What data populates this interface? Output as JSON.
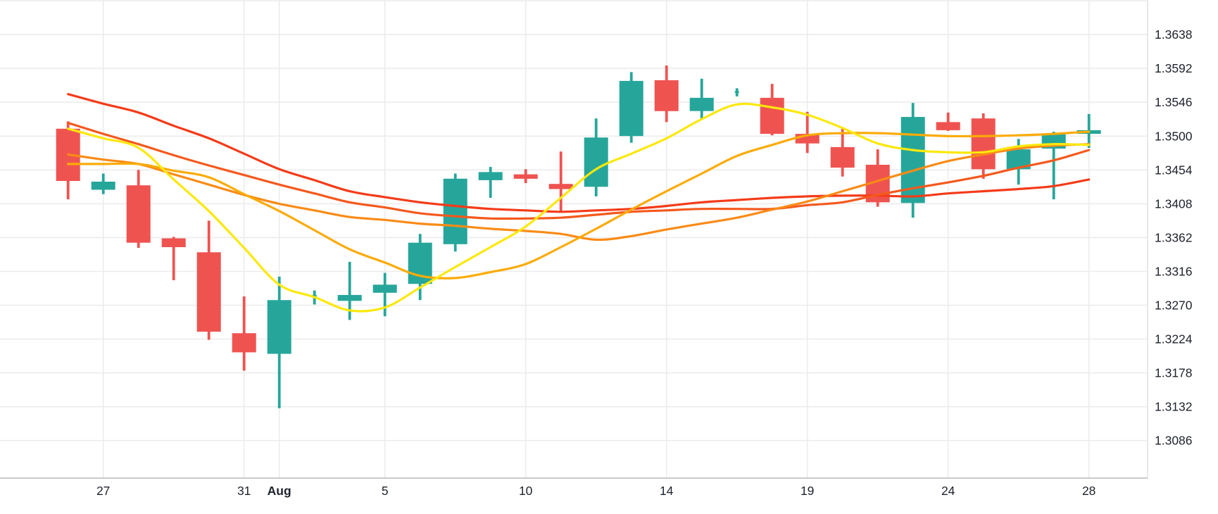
{
  "chart_data": {
    "type": "candlestick",
    "instrument_hint": "",
    "grid": true,
    "legend_position": "none",
    "y_axis": {
      "side": "right",
      "tick_labels": [
        "1.3638",
        "1.3592",
        "1.3546",
        "1.3500",
        "1.3454",
        "1.3408",
        "1.3362",
        "1.3316",
        "1.3270",
        "1.3224",
        "1.3178",
        "1.3132",
        "1.3086"
      ],
      "tick_prices": [
        1.3638,
        1.3592,
        1.3546,
        1.35,
        1.3454,
        1.3408,
        1.3362,
        1.3316,
        1.327,
        1.3224,
        1.3178,
        1.3132,
        1.3086
      ],
      "ylim": [
        1.3035,
        1.3685
      ]
    },
    "x_axis": {
      "side": "bottom",
      "labels": [
        {
          "candle_index": 1,
          "text": "27",
          "bold": false
        },
        {
          "candle_index": 5,
          "text": "31",
          "bold": false
        },
        {
          "candle_index": 6,
          "text": "Aug",
          "bold": true
        },
        {
          "candle_index": 9,
          "text": "5",
          "bold": false
        },
        {
          "candle_index": 13,
          "text": "10",
          "bold": false
        },
        {
          "candle_index": 17,
          "text": "14",
          "bold": false
        },
        {
          "candle_index": 21,
          "text": "19",
          "bold": false
        },
        {
          "candle_index": 25,
          "text": "24",
          "bold": false
        },
        {
          "candle_index": 29,
          "text": "28",
          "bold": false
        }
      ]
    },
    "candles": [
      {
        "o": 1.351,
        "h": 1.352,
        "l": 1.3414,
        "c": 1.3439
      },
      {
        "o": 1.3427,
        "h": 1.3449,
        "l": 1.3421,
        "c": 1.3438
      },
      {
        "o": 1.3433,
        "h": 1.3454,
        "l": 1.3348,
        "c": 1.3355
      },
      {
        "o": 1.3361,
        "h": 1.3363,
        "l": 1.3304,
        "c": 1.3349
      },
      {
        "o": 1.3342,
        "h": 1.3385,
        "l": 1.3223,
        "c": 1.3234
      },
      {
        "o": 1.3232,
        "h": 1.3282,
        "l": 1.3181,
        "c": 1.3206
      },
      {
        "o": 1.3204,
        "h": 1.3309,
        "l": 1.313,
        "c": 1.3277
      },
      {
        "o": 1.328,
        "h": 1.329,
        "l": 1.3271,
        "c": 1.3284,
        "thin": true
      },
      {
        "o": 1.3276,
        "h": 1.3329,
        "l": 1.325,
        "c": 1.3284
      },
      {
        "o": 1.3287,
        "h": 1.3314,
        "l": 1.3255,
        "c": 1.3298
      },
      {
        "o": 1.3299,
        "h": 1.3367,
        "l": 1.3277,
        "c": 1.3355
      },
      {
        "o": 1.3353,
        "h": 1.3449,
        "l": 1.3343,
        "c": 1.3442
      },
      {
        "o": 1.344,
        "h": 1.3458,
        "l": 1.3416,
        "c": 1.3451
      },
      {
        "o": 1.3448,
        "h": 1.3455,
        "l": 1.3436,
        "c": 1.3442
      },
      {
        "o": 1.3435,
        "h": 1.3479,
        "l": 1.3398,
        "c": 1.3428
      },
      {
        "o": 1.3431,
        "h": 1.3524,
        "l": 1.3418,
        "c": 1.3498
      },
      {
        "o": 1.35,
        "h": 1.3587,
        "l": 1.3491,
        "c": 1.3575
      },
      {
        "o": 1.3576,
        "h": 1.3596,
        "l": 1.3519,
        "c": 1.3534
      },
      {
        "o": 1.3534,
        "h": 1.3578,
        "l": 1.3524,
        "c": 1.3552
      },
      {
        "o": 1.3559,
        "h": 1.3565,
        "l": 1.3554,
        "c": 1.3561,
        "thin": true
      },
      {
        "o": 1.3552,
        "h": 1.3571,
        "l": 1.3501,
        "c": 1.3503
      },
      {
        "o": 1.3503,
        "h": 1.3533,
        "l": 1.3477,
        "c": 1.349
      },
      {
        "o": 1.3485,
        "h": 1.351,
        "l": 1.3445,
        "c": 1.3457
      },
      {
        "o": 1.3461,
        "h": 1.3482,
        "l": 1.3404,
        "c": 1.341
      },
      {
        "o": 1.3409,
        "h": 1.3545,
        "l": 1.3389,
        "c": 1.3526
      },
      {
        "o": 1.3519,
        "h": 1.3532,
        "l": 1.3507,
        "c": 1.3508
      },
      {
        "o": 1.3524,
        "h": 1.3531,
        "l": 1.3442,
        "c": 1.3455
      },
      {
        "o": 1.3455,
        "h": 1.3496,
        "l": 1.3434,
        "c": 1.3482
      },
      {
        "o": 1.3483,
        "h": 1.3506,
        "l": 1.3414,
        "c": 1.3503
      },
      {
        "o": 1.3503,
        "h": 1.353,
        "l": 1.3484,
        "c": 1.3508
      }
    ],
    "ma_lines": [
      {
        "name": "ma-slowest-red",
        "color": "#f43b19",
        "values": [
          1.3557,
          1.3544,
          1.3532,
          1.3514,
          1.3497,
          1.3476,
          1.3455,
          1.344,
          1.3425,
          1.3417,
          1.341,
          1.3405,
          1.3401,
          1.3399,
          1.3397,
          1.3399,
          1.3401,
          1.3405,
          1.341,
          1.3413,
          1.3416,
          1.3418,
          1.3419,
          1.3419,
          1.3418,
          1.3422,
          1.3425,
          1.3428,
          1.3432,
          1.3441
        ]
      },
      {
        "name": "ma-slow-orangered",
        "color": "#f4591d",
        "values": [
          1.3518,
          1.3503,
          1.3489,
          1.3474,
          1.346,
          1.3447,
          1.3434,
          1.3422,
          1.341,
          1.3403,
          1.3395,
          1.3391,
          1.3388,
          1.3388,
          1.3389,
          1.3393,
          1.3397,
          1.3399,
          1.3401,
          1.3401,
          1.3401,
          1.3406,
          1.341,
          1.342,
          1.3429,
          1.3437,
          1.3446,
          1.3457,
          1.3467,
          1.3481
        ]
      },
      {
        "name": "ma-mid-orange",
        "color": "#f98b16",
        "values": [
          1.3475,
          1.3468,
          1.3462,
          1.3448,
          1.3434,
          1.342,
          1.3408,
          1.3399,
          1.339,
          1.3386,
          1.3381,
          1.3378,
          1.3374,
          1.3371,
          1.3367,
          1.3359,
          1.3364,
          1.3373,
          1.3381,
          1.3389,
          1.34,
          1.3411,
          1.3425,
          1.3439,
          1.3453,
          1.3466,
          1.3475,
          1.3483,
          1.3487,
          1.3489
        ]
      },
      {
        "name": "ma-fast-amber",
        "color": "#fbab07",
        "values": [
          1.3462,
          1.3462,
          1.3462,
          1.3453,
          1.3444,
          1.3421,
          1.3398,
          1.3372,
          1.3346,
          1.3328,
          1.331,
          1.3307,
          1.3315,
          1.3326,
          1.3349,
          1.3374,
          1.34,
          1.3425,
          1.3449,
          1.3473,
          1.3488,
          1.3501,
          1.3504,
          1.3504,
          1.3502,
          1.35,
          1.35,
          1.3501,
          1.3503,
          1.3506
        ]
      },
      {
        "name": "ma-fastest-yellow",
        "color": "#fce80b",
        "values": [
          1.351,
          1.3497,
          1.3484,
          1.3441,
          1.3398,
          1.3348,
          1.3298,
          1.3281,
          1.3263,
          1.3267,
          1.3294,
          1.3322,
          1.3349,
          1.3377,
          1.3416,
          1.3455,
          1.3476,
          1.3497,
          1.3523,
          1.3543,
          1.3539,
          1.3529,
          1.3511,
          1.349,
          1.3481,
          1.3478,
          1.3478,
          1.3486,
          1.3489,
          1.3488
        ]
      }
    ]
  },
  "colors": {
    "up_candle": "#26a69a",
    "down_candle": "#ef5350",
    "grid": "#ececec",
    "bottom_axis_line": "#b9b9bd",
    "right_axis_line": "#e3e3e6",
    "label_text": "#1e222d",
    "background": "#ffffff"
  }
}
